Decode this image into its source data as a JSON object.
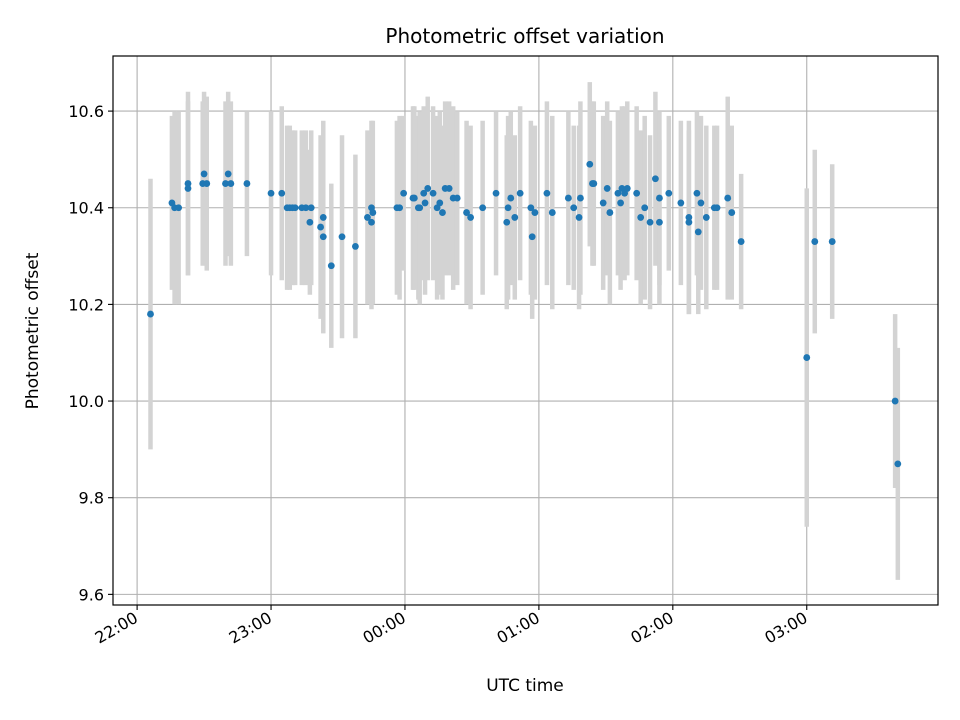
{
  "chart_data": {
    "type": "scatter",
    "title": "Photometric offset variation",
    "xlabel": "UTC time",
    "ylabel": "Photometric offset",
    "xlim": [
      -0.18,
      5.98
    ],
    "ylim": [
      9.578,
      10.714
    ],
    "grid": true,
    "colors": {
      "marker": "#1f77b4",
      "errorbar": "#d3d3d3",
      "grid": "#b0b0b0"
    },
    "x_ticks": [
      {
        "value": 0,
        "label": "22:00"
      },
      {
        "value": 1,
        "label": "23:00"
      },
      {
        "value": 2,
        "label": "00:00"
      },
      {
        "value": 3,
        "label": "01:00"
      },
      {
        "value": 4,
        "label": "02:00"
      },
      {
        "value": 5,
        "label": "03:00"
      }
    ],
    "y_ticks": [
      {
        "value": 9.6,
        "label": "9.6"
      },
      {
        "value": 9.8,
        "label": "9.8"
      },
      {
        "value": 10.0,
        "label": "10.0"
      },
      {
        "value": 10.2,
        "label": "10.2"
      },
      {
        "value": 10.4,
        "label": "10.4"
      },
      {
        "value": 10.6,
        "label": "10.6"
      }
    ],
    "points": [
      [
        0.1,
        10.18,
        0.28
      ],
      [
        0.26,
        10.41,
        0.18
      ],
      [
        0.28,
        10.4,
        0.2
      ],
      [
        0.31,
        10.4,
        0.2
      ],
      [
        0.38,
        10.45,
        0.19
      ],
      [
        0.38,
        10.44,
        0.18
      ],
      [
        0.49,
        10.45,
        0.17
      ],
      [
        0.5,
        10.47,
        0.17
      ],
      [
        0.52,
        10.45,
        0.18
      ],
      [
        0.66,
        10.45,
        0.17
      ],
      [
        0.68,
        10.47,
        0.17
      ],
      [
        0.7,
        10.45,
        0.17
      ],
      [
        0.82,
        10.45,
        0.15
      ],
      [
        1.0,
        10.43,
        0.17
      ],
      [
        1.08,
        10.43,
        0.18
      ],
      [
        1.12,
        10.4,
        0.17
      ],
      [
        1.14,
        10.4,
        0.17
      ],
      [
        1.16,
        10.4,
        0.16
      ],
      [
        1.18,
        10.4,
        0.16
      ],
      [
        1.23,
        10.4,
        0.16
      ],
      [
        1.26,
        10.4,
        0.16
      ],
      [
        1.29,
        10.37,
        0.15
      ],
      [
        1.3,
        10.4,
        0.16
      ],
      [
        1.37,
        10.36,
        0.19
      ],
      [
        1.39,
        10.38,
        0.2
      ],
      [
        1.39,
        10.34,
        0.2
      ],
      [
        1.45,
        10.28,
        0.17
      ],
      [
        1.53,
        10.34,
        0.21
      ],
      [
        1.63,
        10.32,
        0.19
      ],
      [
        1.72,
        10.38,
        0.18
      ],
      [
        1.75,
        10.4,
        0.18
      ],
      [
        1.75,
        10.37,
        0.18
      ],
      [
        1.76,
        10.39,
        0.19
      ],
      [
        1.94,
        10.4,
        0.18
      ],
      [
        1.96,
        10.4,
        0.19
      ],
      [
        1.99,
        10.43,
        0.16
      ],
      [
        2.06,
        10.42,
        0.19
      ],
      [
        2.07,
        10.42,
        0.19
      ],
      [
        2.1,
        10.4,
        0.19
      ],
      [
        2.11,
        10.4,
        0.2
      ],
      [
        2.14,
        10.43,
        0.18
      ],
      [
        2.15,
        10.41,
        0.19
      ],
      [
        2.17,
        10.44,
        0.19
      ],
      [
        2.21,
        10.43,
        0.18
      ],
      [
        2.24,
        10.4,
        0.19
      ],
      [
        2.26,
        10.41,
        0.19
      ],
      [
        2.28,
        10.39,
        0.18
      ],
      [
        2.3,
        10.44,
        0.18
      ],
      [
        2.33,
        10.44,
        0.18
      ],
      [
        2.36,
        10.42,
        0.19
      ],
      [
        2.39,
        10.42,
        0.18
      ],
      [
        2.46,
        10.39,
        0.19
      ],
      [
        2.49,
        10.38,
        0.19
      ],
      [
        2.58,
        10.4,
        0.18
      ],
      [
        2.68,
        10.43,
        0.17
      ],
      [
        2.76,
        10.37,
        0.18
      ],
      [
        2.77,
        10.4,
        0.19
      ],
      [
        2.79,
        10.42,
        0.18
      ],
      [
        2.82,
        10.38,
        0.17
      ],
      [
        2.86,
        10.43,
        0.18
      ],
      [
        2.94,
        10.4,
        0.18
      ],
      [
        2.95,
        10.34,
        0.17
      ],
      [
        2.97,
        10.39,
        0.18
      ],
      [
        3.06,
        10.43,
        0.19
      ],
      [
        3.1,
        10.39,
        0.2
      ],
      [
        3.22,
        10.42,
        0.18
      ],
      [
        3.26,
        10.4,
        0.17
      ],
      [
        3.3,
        10.38,
        0.19
      ],
      [
        3.31,
        10.42,
        0.2
      ],
      [
        3.38,
        10.49,
        0.17
      ],
      [
        3.4,
        10.45,
        0.17
      ],
      [
        3.41,
        10.45,
        0.17
      ],
      [
        3.48,
        10.41,
        0.18
      ],
      [
        3.51,
        10.44,
        0.18
      ],
      [
        3.53,
        10.39,
        0.19
      ],
      [
        3.59,
        10.43,
        0.17
      ],
      [
        3.61,
        10.41,
        0.18
      ],
      [
        3.62,
        10.44,
        0.17
      ],
      [
        3.64,
        10.43,
        0.18
      ],
      [
        3.66,
        10.44,
        0.18
      ],
      [
        3.73,
        10.43,
        0.18
      ],
      [
        3.76,
        10.38,
        0.18
      ],
      [
        3.79,
        10.4,
        0.19
      ],
      [
        3.83,
        10.37,
        0.18
      ],
      [
        3.87,
        10.46,
        0.18
      ],
      [
        3.9,
        10.42,
        0.18
      ],
      [
        3.9,
        10.37,
        0.17
      ],
      [
        3.97,
        10.43,
        0.16
      ],
      [
        4.06,
        10.41,
        0.17
      ],
      [
        4.12,
        10.38,
        0.2
      ],
      [
        4.12,
        10.37,
        0.19
      ],
      [
        4.18,
        10.43,
        0.17
      ],
      [
        4.19,
        10.35,
        0.17
      ],
      [
        4.21,
        10.41,
        0.18
      ],
      [
        4.25,
        10.38,
        0.19
      ],
      [
        4.31,
        10.4,
        0.17
      ],
      [
        4.33,
        10.4,
        0.17
      ],
      [
        4.41,
        10.42,
        0.21
      ],
      [
        4.44,
        10.39,
        0.18
      ],
      [
        4.51,
        10.33,
        0.14
      ],
      [
        5.0,
        10.09,
        0.35
      ],
      [
        5.06,
        10.33,
        0.19
      ],
      [
        5.19,
        10.33,
        0.16
      ],
      [
        5.66,
        10.0,
        0.18
      ],
      [
        5.68,
        9.87,
        0.24
      ]
    ]
  }
}
